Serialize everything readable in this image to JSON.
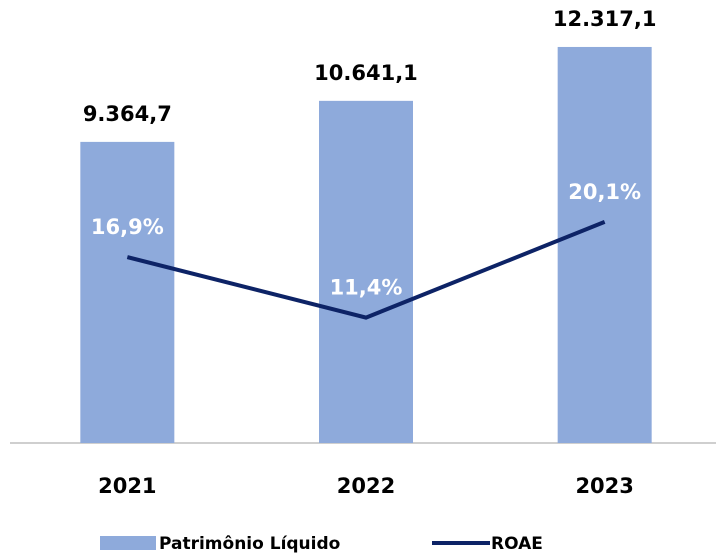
{
  "chart_data": {
    "type": "bar",
    "categories": [
      "2021",
      "2022",
      "2023"
    ],
    "series": [
      {
        "name": "Patrimônio Líquido",
        "type": "bar",
        "color": "#8eaadb",
        "values": [
          9364.7,
          10641.1,
          12317.1
        ],
        "value_labels": [
          "9.364,7",
          "10.641,1",
          "12.317,1"
        ]
      },
      {
        "name": "ROAE",
        "type": "line",
        "axis": "y2",
        "color": "#0d2366",
        "values": [
          16.9,
          11.4,
          20.1
        ],
        "value_labels": [
          "16,9%",
          "11,4%",
          "20,1%"
        ]
      }
    ],
    "ylim": [
      0,
      13000
    ],
    "y2lim": [
      0,
      38
    ],
    "grid": false,
    "legend": "bottom"
  }
}
